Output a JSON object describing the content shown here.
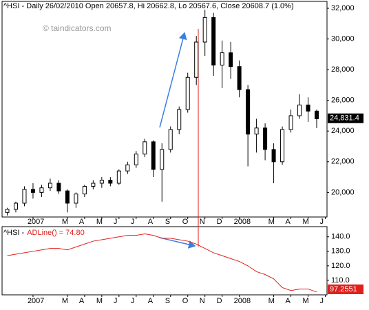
{
  "chart_data": [
    {
      "type": "candlestick",
      "title": "^HSI - Daily 26/02/2010 Open 20657.8, Hi 20662.8, Lo 20567.6, Close 20608.7 (1.0%)",
      "annotation": "© taindicators.com",
      "x": [
        -1.5,
        -1,
        -0.5,
        0,
        0.5,
        1,
        1.5,
        2,
        2.5,
        3,
        3.5,
        4,
        4.5,
        5,
        5.5,
        6,
        6.5,
        7,
        7.5,
        8,
        8.5,
        9,
        9.5,
        10,
        10.5,
        11,
        11.5,
        12,
        12.5,
        13,
        13.5,
        14,
        14.5,
        15,
        15.5,
        16,
        16.5
      ],
      "open": [
        18700,
        18900,
        19300,
        20200,
        20000,
        20300,
        20600,
        20100,
        19300,
        19900,
        20400,
        20600,
        20800,
        20600,
        21400,
        21800,
        22500,
        23300,
        21500,
        22800,
        24100,
        25400,
        27500,
        29800,
        31400,
        28300,
        29100,
        28200,
        26700,
        23800,
        24200,
        22800,
        22000,
        24100,
        25000,
        25700,
        25300
      ],
      "high": [
        19000,
        19400,
        20400,
        20600,
        20500,
        20900,
        20800,
        20200,
        20000,
        20500,
        20800,
        21000,
        21000,
        21500,
        22000,
        22700,
        23500,
        23400,
        23200,
        24300,
        25600,
        27800,
        30200,
        31900,
        31700,
        29900,
        29800,
        28600,
        27000,
        24800,
        24500,
        23200,
        24300,
        25400,
        26400,
        26200,
        25400
      ],
      "low": [
        18500,
        18700,
        19100,
        19600,
        19700,
        20100,
        19900,
        18700,
        19000,
        19700,
        20200,
        20300,
        20400,
        20500,
        21200,
        21600,
        22300,
        21000,
        19400,
        22600,
        23800,
        25200,
        27000,
        28900,
        27600,
        26800,
        27400,
        26200,
        21700,
        22600,
        22100,
        20600,
        21800,
        23900,
        24800,
        24600,
        24200
      ],
      "close": [
        18900,
        19300,
        20200,
        20000,
        20300,
        20600,
        20100,
        19300,
        19900,
        20400,
        20600,
        20800,
        20600,
        21400,
        21800,
        22500,
        23300,
        21500,
        22800,
        24100,
        25400,
        27500,
        29800,
        31400,
        28300,
        29100,
        28200,
        26700,
        23800,
        24200,
        22800,
        22000,
        24100,
        25000,
        25700,
        25300,
        24800
      ],
      "up_color": "#ffffff",
      "down_color": "#000000",
      "last_price": {
        "value": 24831.4,
        "label": "24,831.4"
      },
      "xlim": [
        -1.8,
        17.1
      ],
      "xticks": [
        {
          "value": 0,
          "label": "2007"
        },
        {
          "value": 2,
          "label": "M"
        },
        {
          "value": 3,
          "label": "A"
        },
        {
          "value": 4,
          "label": "M"
        },
        {
          "value": 5,
          "label": "J"
        },
        {
          "value": 6,
          "label": "J"
        },
        {
          "value": 7,
          "label": "A"
        },
        {
          "value": 8,
          "label": "S"
        },
        {
          "value": 9,
          "label": "O"
        },
        {
          "value": 10,
          "label": "N"
        },
        {
          "value": 11,
          "label": "D"
        },
        {
          "value": 12,
          "label": "2008"
        },
        {
          "value": 14,
          "label": "M"
        },
        {
          "value": 15,
          "label": "A"
        },
        {
          "value": 16,
          "label": "M"
        },
        {
          "value": 17,
          "label": "J"
        }
      ],
      "ylim": [
        18400,
        32450
      ],
      "yticks": [
        {
          "value": 20000,
          "label": "20,000"
        },
        {
          "value": 22000,
          "label": "22,000"
        },
        {
          "value": 24000,
          "label": "24,000"
        },
        {
          "value": 26000,
          "label": "26,000"
        },
        {
          "value": 28000,
          "label": "28,000"
        },
        {
          "value": 30000,
          "label": "30,000"
        },
        {
          "value": 32000,
          "label": "32,000"
        }
      ],
      "grid": false
    },
    {
      "type": "line",
      "title": "^HSI -",
      "x": [
        -1.5,
        -1,
        -0.5,
        0,
        0.5,
        1,
        1.5,
        2,
        2.5,
        3,
        3.5,
        4,
        4.5,
        5,
        5.5,
        6,
        6.5,
        7,
        7.5,
        8,
        8.5,
        9,
        9.5,
        10,
        10.5,
        11,
        11.5,
        12,
        12.5,
        13,
        13.5,
        14,
        14.5,
        15,
        15.5,
        16,
        16.5
      ],
      "series": [
        {
          "name": "ADLine() = 74.80",
          "color": "#e0201b",
          "values": [
            127,
            128,
            129,
            130,
            131,
            132,
            132,
            131,
            133,
            135,
            137,
            138,
            139,
            140,
            141,
            141,
            142,
            141,
            139,
            139,
            138,
            137,
            135,
            132,
            129,
            127,
            125,
            123,
            120,
            116,
            114,
            111,
            105,
            103,
            104,
            104,
            102
          ]
        }
      ],
      "last_label": "97.2551",
      "xlim": [
        -1.8,
        17.1
      ],
      "xticks": [
        {
          "value": 0,
          "label": "2007"
        },
        {
          "value": 2,
          "label": "M"
        },
        {
          "value": 3,
          "label": "A"
        },
        {
          "value": 4,
          "label": "M"
        },
        {
          "value": 5,
          "label": "J"
        },
        {
          "value": 6,
          "label": "J"
        },
        {
          "value": 7,
          "label": "A"
        },
        {
          "value": 8,
          "label": "S"
        },
        {
          "value": 9,
          "label": "O"
        },
        {
          "value": 10,
          "label": "N"
        },
        {
          "value": 11,
          "label": "D"
        },
        {
          "value": 12,
          "label": "2008"
        },
        {
          "value": 14,
          "label": "M"
        },
        {
          "value": 15,
          "label": "A"
        },
        {
          "value": 16,
          "label": "M"
        },
        {
          "value": 17,
          "label": "J"
        }
      ],
      "ylim": [
        100,
        147
      ],
      "yticks": [
        {
          "value": 110,
          "label": "110.0"
        },
        {
          "value": 120,
          "label": "120.0"
        },
        {
          "value": 130,
          "label": "130.0"
        },
        {
          "value": 140,
          "label": "140.0"
        }
      ],
      "grid": false
    }
  ]
}
